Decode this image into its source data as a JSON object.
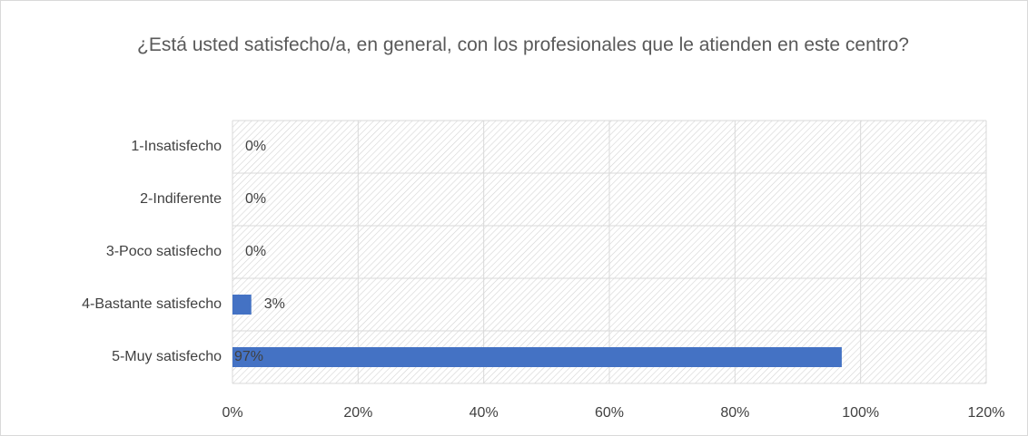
{
  "chart_data": {
    "type": "bar",
    "orientation": "horizontal",
    "title": "¿Está usted satisfecho/a, en general, con los profesionales que le atienden en este centro?",
    "categories": [
      "1-Insatisfecho",
      "2-Indiferente",
      "3-Poco satisfecho",
      "4-Bastante satisfecho",
      "5-Muy satisfecho"
    ],
    "values": [
      0,
      0,
      0,
      3,
      97
    ],
    "value_labels": [
      "0%",
      "0%",
      "0%",
      "3%",
      "97%"
    ],
    "color": "#4472c4",
    "xlim": [
      0,
      120
    ],
    "xticks": [
      {
        "value": 0,
        "label": "0%"
      },
      {
        "value": 20,
        "label": "20%"
      },
      {
        "value": 40,
        "label": "40%"
      },
      {
        "value": 60,
        "label": "60%"
      },
      {
        "value": 80,
        "label": "80%"
      },
      {
        "value": 100,
        "label": "100%"
      },
      {
        "value": 120,
        "label": "120%"
      }
    ],
    "grid": true
  }
}
